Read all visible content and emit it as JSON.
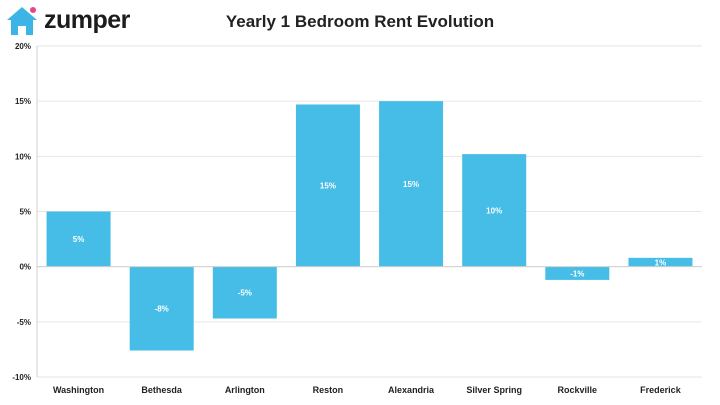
{
  "brand": {
    "name": "zumper",
    "color": "#3cb4e6",
    "accent": "#e8448c"
  },
  "chart_data": {
    "type": "bar",
    "title": "Yearly 1 Bedroom Rent Evolution",
    "xlabel": "",
    "ylabel": "",
    "categories": [
      "Washington",
      "Bethesda",
      "Arlington",
      "Reston",
      "Alexandria",
      "Silver Spring",
      "Rockville",
      "Frederick"
    ],
    "values": [
      5.0,
      -7.6,
      -4.7,
      14.7,
      15.0,
      10.2,
      -1.2,
      0.8
    ],
    "data_labels": [
      "5%",
      "-8%",
      "-5%",
      "15%",
      "15%",
      "10%",
      "-1%",
      "1%"
    ],
    "ylim": [
      -10,
      20
    ],
    "yticks": [
      20,
      15,
      10,
      5,
      0,
      -5,
      -10
    ],
    "ytick_labels": [
      "20%",
      "15%",
      "10%",
      "5%",
      "0%",
      "-5%",
      "-10%"
    ],
    "grid": true,
    "bar_color": "#45bde6",
    "label_color": "#ffffff"
  }
}
